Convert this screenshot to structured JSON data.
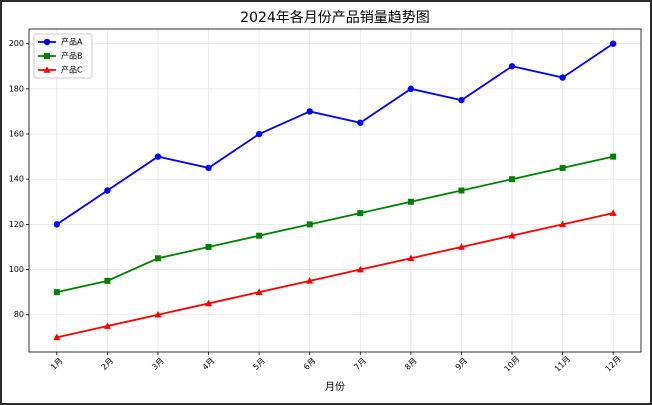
{
  "chart_data": {
    "type": "line",
    "title": "2024年各月份产品销量趋势图",
    "x_label": "月份",
    "categories": [
      "1月",
      "2月",
      "3月",
      "4月",
      "5月",
      "6月",
      "7月",
      "8月",
      "9月",
      "10月",
      "11月",
      "12月"
    ],
    "series": [
      {
        "name": "产品A",
        "color": "#0000ff",
        "marker": "circle",
        "values": [
          120,
          135,
          150,
          145,
          160,
          170,
          165,
          180,
          175,
          190,
          185,
          200
        ]
      },
      {
        "name": "产品B",
        "color": "#008000",
        "marker": "square",
        "values": [
          90,
          95,
          105,
          110,
          115,
          120,
          125,
          130,
          135,
          140,
          145,
          150
        ]
      },
      {
        "name": "产品C",
        "color": "#ff0000",
        "marker": "triangle",
        "values": [
          70,
          75,
          80,
          85,
          90,
          95,
          100,
          105,
          110,
          115,
          120,
          125
        ]
      }
    ],
    "ylim": [
      63.5,
      206.5
    ],
    "yticks": [
      80,
      100,
      120,
      140,
      160,
      180,
      200
    ],
    "grid": true,
    "legend": "upper-left"
  }
}
